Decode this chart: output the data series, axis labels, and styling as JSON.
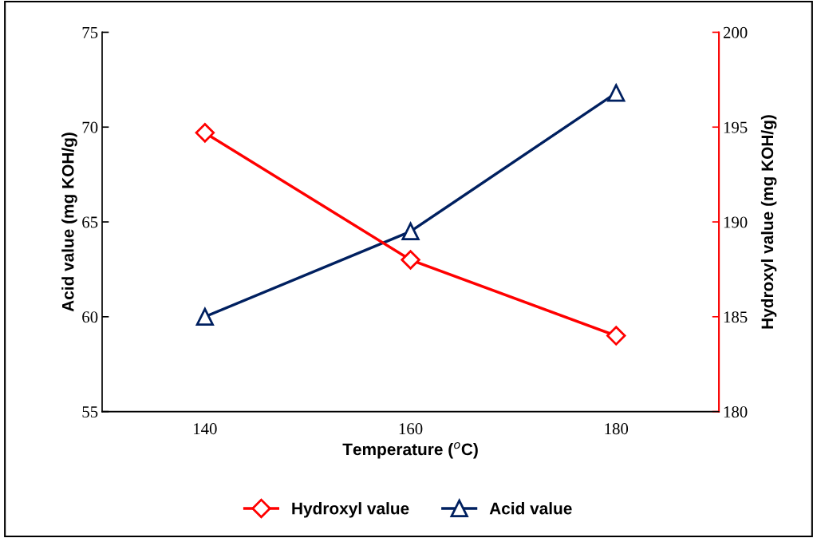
{
  "chart_data": {
    "type": "line",
    "categories": [
      "140",
      "160",
      "180"
    ],
    "xlabel": "Temperature ($^{o}$C)",
    "ylabel": "Acid value (mg KOH/g)",
    "y2label": "Hydroxyl value (mg KOH/g)",
    "series": [
      {
        "name": "Hydroxyl value",
        "color": "#ff0000",
        "values": [
          194.7,
          188,
          184
        ],
        "axis": "y2",
        "marker": "diamond"
      },
      {
        "name": "Acid value",
        "color": "#002060",
        "values": [
          60,
          64.5,
          71.8
        ],
        "marker": "triangle"
      }
    ],
    "ylim": [
      55,
      75
    ],
    "yticks": [
      55,
      60,
      65,
      70,
      75
    ],
    "y2lim": [
      180,
      200
    ],
    "y2ticks": [
      180,
      185,
      190,
      195,
      200
    ],
    "legend": "bottom",
    "grid": false,
    "line_style": "solid"
  }
}
